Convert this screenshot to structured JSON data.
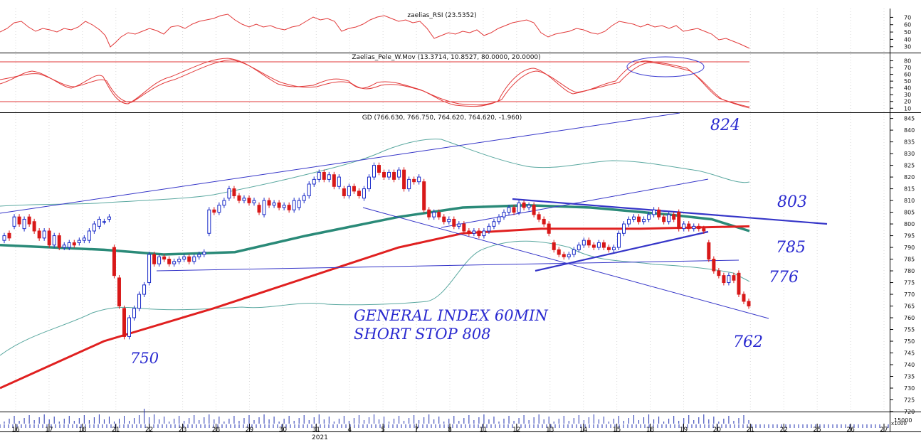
{
  "chart_data": [
    {
      "panel": "rsi",
      "type": "line",
      "title": "zaelias_RSI (23.5352)",
      "y_ticks": [
        "70",
        "60",
        "50",
        "40",
        "30"
      ],
      "ylim": [
        22,
        82
      ],
      "colors": {
        "line": "#e23a3a"
      }
    },
    {
      "panel": "oscillator",
      "type": "line",
      "title": "Zaelias_Pele_W.Mov (13.3714, 10.8527, 80.0000, 20.0000)",
      "y_ticks": [
        "80",
        "70",
        "60",
        "50",
        "40",
        "30",
        "20",
        "10"
      ],
      "ylim": [
        4,
        90
      ],
      "levels": [
        80,
        20
      ],
      "colors": {
        "line": "#e23a3a",
        "highlight_ellipse": "#3a3ad0"
      }
    },
    {
      "panel": "price",
      "type": "candlestick",
      "title": "GD (766.630, 766.750, 764.620, 764.620, -1.960)",
      "y_ticks": [
        "845",
        "840",
        "835",
        "830",
        "825",
        "820",
        "815",
        "810",
        "805",
        "800",
        "795",
        "790",
        "785",
        "780",
        "775",
        "770",
        "765",
        "760",
        "755",
        "750",
        "745",
        "740",
        "735",
        "730",
        "725",
        "720"
      ],
      "ylim": [
        720,
        847
      ],
      "x_tick_labels": [
        "16",
        "17",
        "18",
        "21",
        "22",
        "23",
        "28",
        "29",
        "30",
        "31",
        "4",
        "5",
        "7",
        "8",
        "11",
        "12",
        "13",
        "14",
        "15",
        "18",
        "19",
        "20",
        "21",
        "22",
        "25",
        "26",
        "27"
      ],
      "year_label": "2021",
      "volume_label": "15000",
      "volume_scale_label": "x1000",
      "candle_series": [
        {
          "o": 793,
          "c": 795
        },
        {
          "o": 796,
          "c": 794
        },
        {
          "o": 799,
          "c": 803
        },
        {
          "o": 803,
          "c": 800
        },
        {
          "o": 798,
          "c": 802
        },
        {
          "o": 803,
          "c": 800
        },
        {
          "o": 801,
          "c": 797
        },
        {
          "o": 797,
          "c": 794
        },
        {
          "o": 794,
          "c": 797
        },
        {
          "o": 797,
          "c": 791
        },
        {
          "o": 791,
          "c": 795
        },
        {
          "o": 795,
          "c": 790
        },
        {
          "o": 790,
          "c": 791
        },
        {
          "o": 790,
          "c": 792
        },
        {
          "o": 792,
          "c": 791
        },
        {
          "o": 792,
          "c": 793
        },
        {
          "o": 793,
          "c": 794
        },
        {
          "o": 793,
          "c": 797
        },
        {
          "o": 797,
          "c": 800
        },
        {
          "o": 799,
          "c": 802
        },
        {
          "o": 801,
          "c": 801
        },
        {
          "o": 802,
          "c": 803
        },
        {
          "o": 790,
          "c": 778
        },
        {
          "o": 777,
          "c": 765
        },
        {
          "o": 764,
          "c": 752
        },
        {
          "o": 752,
          "c": 760
        },
        {
          "o": 760,
          "c": 764
        },
        {
          "o": 764,
          "c": 770
        },
        {
          "o": 770,
          "c": 774
        },
        {
          "o": 775,
          "c": 787
        },
        {
          "o": 787,
          "c": 783
        },
        {
          "o": 783,
          "c": 786
        },
        {
          "o": 786,
          "c": 785
        },
        {
          "o": 785,
          "c": 783
        },
        {
          "o": 783,
          "c": 784
        },
        {
          "o": 784,
          "c": 785
        },
        {
          "o": 785,
          "c": 786
        },
        {
          "o": 786,
          "c": 784
        },
        {
          "o": 784,
          "c": 786
        },
        {
          "o": 786,
          "c": 787
        },
        {
          "o": 787,
          "c": 788
        },
        {
          "o": 796,
          "c": 806
        },
        {
          "o": 806,
          "c": 805
        },
        {
          "o": 805,
          "c": 808
        },
        {
          "o": 808,
          "c": 810
        },
        {
          "o": 811,
          "c": 815
        },
        {
          "o": 815,
          "c": 812
        },
        {
          "o": 812,
          "c": 810
        },
        {
          "o": 810,
          "c": 811
        },
        {
          "o": 811,
          "c": 809
        },
        {
          "o": 809,
          "c": 810
        },
        {
          "o": 808,
          "c": 805
        },
        {
          "o": 804,
          "c": 810
        },
        {
          "o": 810,
          "c": 808
        },
        {
          "o": 808,
          "c": 809
        },
        {
          "o": 809,
          "c": 807
        },
        {
          "o": 807,
          "c": 808
        },
        {
          "o": 808,
          "c": 806
        },
        {
          "o": 806,
          "c": 810
        },
        {
          "o": 807,
          "c": 810
        },
        {
          "o": 810,
          "c": 812
        },
        {
          "o": 812,
          "c": 817
        },
        {
          "o": 817,
          "c": 819
        },
        {
          "o": 819,
          "c": 822
        },
        {
          "o": 822,
          "c": 819
        },
        {
          "o": 819,
          "c": 821
        },
        {
          "o": 821,
          "c": 816
        },
        {
          "o": 816,
          "c": 820
        },
        {
          "o": 815,
          "c": 812
        },
        {
          "o": 812,
          "c": 816
        },
        {
          "o": 816,
          "c": 814
        },
        {
          "o": 814,
          "c": 812
        },
        {
          "o": 811,
          "c": 815
        },
        {
          "o": 815,
          "c": 820
        },
        {
          "o": 820,
          "c": 825
        },
        {
          "o": 825,
          "c": 822
        },
        {
          "o": 822,
          "c": 820
        },
        {
          "o": 820,
          "c": 822
        },
        {
          "o": 822,
          "c": 819
        },
        {
          "o": 820,
          "c": 823
        },
        {
          "o": 823,
          "c": 815
        },
        {
          "o": 815,
          "c": 819
        },
        {
          "o": 819,
          "c": 818
        },
        {
          "o": 818,
          "c": 820
        },
        {
          "o": 818,
          "c": 806
        },
        {
          "o": 806,
          "c": 803
        },
        {
          "o": 803,
          "c": 805
        },
        {
          "o": 805,
          "c": 803
        },
        {
          "o": 803,
          "c": 801
        },
        {
          "o": 801,
          "c": 802
        },
        {
          "o": 802,
          "c": 799
        },
        {
          "o": 799,
          "c": 800
        },
        {
          "o": 800,
          "c": 797
        },
        {
          "o": 797,
          "c": 796
        },
        {
          "o": 796,
          "c": 797
        },
        {
          "o": 797,
          "c": 795
        },
        {
          "o": 795,
          "c": 797
        },
        {
          "o": 797,
          "c": 799
        },
        {
          "o": 799,
          "c": 801
        },
        {
          "o": 801,
          "c": 803
        },
        {
          "o": 803,
          "c": 805
        },
        {
          "o": 805,
          "c": 807
        },
        {
          "o": 807,
          "c": 805
        },
        {
          "o": 805,
          "c": 809
        },
        {
          "o": 809,
          "c": 807
        },
        {
          "o": 807,
          "c": 808
        },
        {
          "o": 808,
          "c": 804
        },
        {
          "o": 804,
          "c": 802
        },
        {
          "o": 802,
          "c": 800
        },
        {
          "o": 800,
          "c": 796
        },
        {
          "o": 792,
          "c": 789
        },
        {
          "o": 789,
          "c": 787
        },
        {
          "o": 787,
          "c": 786
        },
        {
          "o": 786,
          "c": 787
        },
        {
          "o": 787,
          "c": 789
        },
        {
          "o": 789,
          "c": 791
        },
        {
          "o": 791,
          "c": 793
        },
        {
          "o": 793,
          "c": 791
        },
        {
          "o": 791,
          "c": 790
        },
        {
          "o": 790,
          "c": 792
        },
        {
          "o": 792,
          "c": 790
        },
        {
          "o": 790,
          "c": 789
        },
        {
          "o": 789,
          "c": 790
        },
        {
          "o": 790,
          "c": 796
        },
        {
          "o": 796,
          "c": 800
        },
        {
          "o": 800,
          "c": 802
        },
        {
          "o": 802,
          "c": 803
        },
        {
          "o": 803,
          "c": 801
        },
        {
          "o": 801,
          "c": 802
        },
        {
          "o": 802,
          "c": 804
        },
        {
          "o": 804,
          "c": 806
        },
        {
          "o": 806,
          "c": 803
        },
        {
          "o": 803,
          "c": 801
        },
        {
          "o": 801,
          "c": 804
        },
        {
          "o": 804,
          "c": 802
        },
        {
          "o": 805,
          "c": 798
        },
        {
          "o": 798,
          "c": 800
        },
        {
          "o": 800,
          "c": 798
        },
        {
          "o": 798,
          "c": 799
        },
        {
          "o": 799,
          "c": 798
        },
        {
          "o": 798,
          "c": 797
        },
        {
          "o": 792,
          "c": 785
        },
        {
          "o": 785,
          "c": 780
        },
        {
          "o": 780,
          "c": 778
        },
        {
          "o": 778,
          "c": 775
        },
        {
          "o": 775,
          "c": 778
        },
        {
          "o": 778,
          "c": 776
        },
        {
          "o": 779,
          "c": 770
        },
        {
          "o": 770,
          "c": 767
        },
        {
          "o": 767,
          "c": 765
        }
      ],
      "moving_average_red": [
        [
          0,
          730
        ],
        [
          146,
          750
        ],
        [
          300,
          764
        ],
        [
          450,
          779
        ],
        [
          560,
          790
        ],
        [
          650,
          796
        ],
        [
          760,
          798
        ],
        [
          900,
          798
        ],
        [
          1053,
          799
        ]
      ],
      "moving_average_green": [
        [
          0,
          791
        ],
        [
          146,
          789
        ],
        [
          230,
          787
        ],
        [
          330,
          788
        ],
        [
          430,
          795
        ],
        [
          560,
          803
        ],
        [
          650,
          807
        ],
        [
          740,
          808
        ],
        [
          830,
          807
        ],
        [
          940,
          804
        ],
        [
          1000,
          802
        ],
        [
          1053,
          797
        ]
      ],
      "annotations": {
        "labels": {
          "l824": "824",
          "l803": "803",
          "l785": "785",
          "l776": "776",
          "l762": "762",
          "l750": "750"
        },
        "note_line1": "GENERAL INDEX 60MIN",
        "note_line2": "SHORT STOP 808"
      },
      "colors": {
        "up_candle": "#1a2bc8",
        "down_candle": "#d81818",
        "ma_red": "#e02020",
        "ma_green": "#2a8a78",
        "trendline": "#3535c8",
        "handwriting": "#2a2ad0"
      }
    }
  ]
}
